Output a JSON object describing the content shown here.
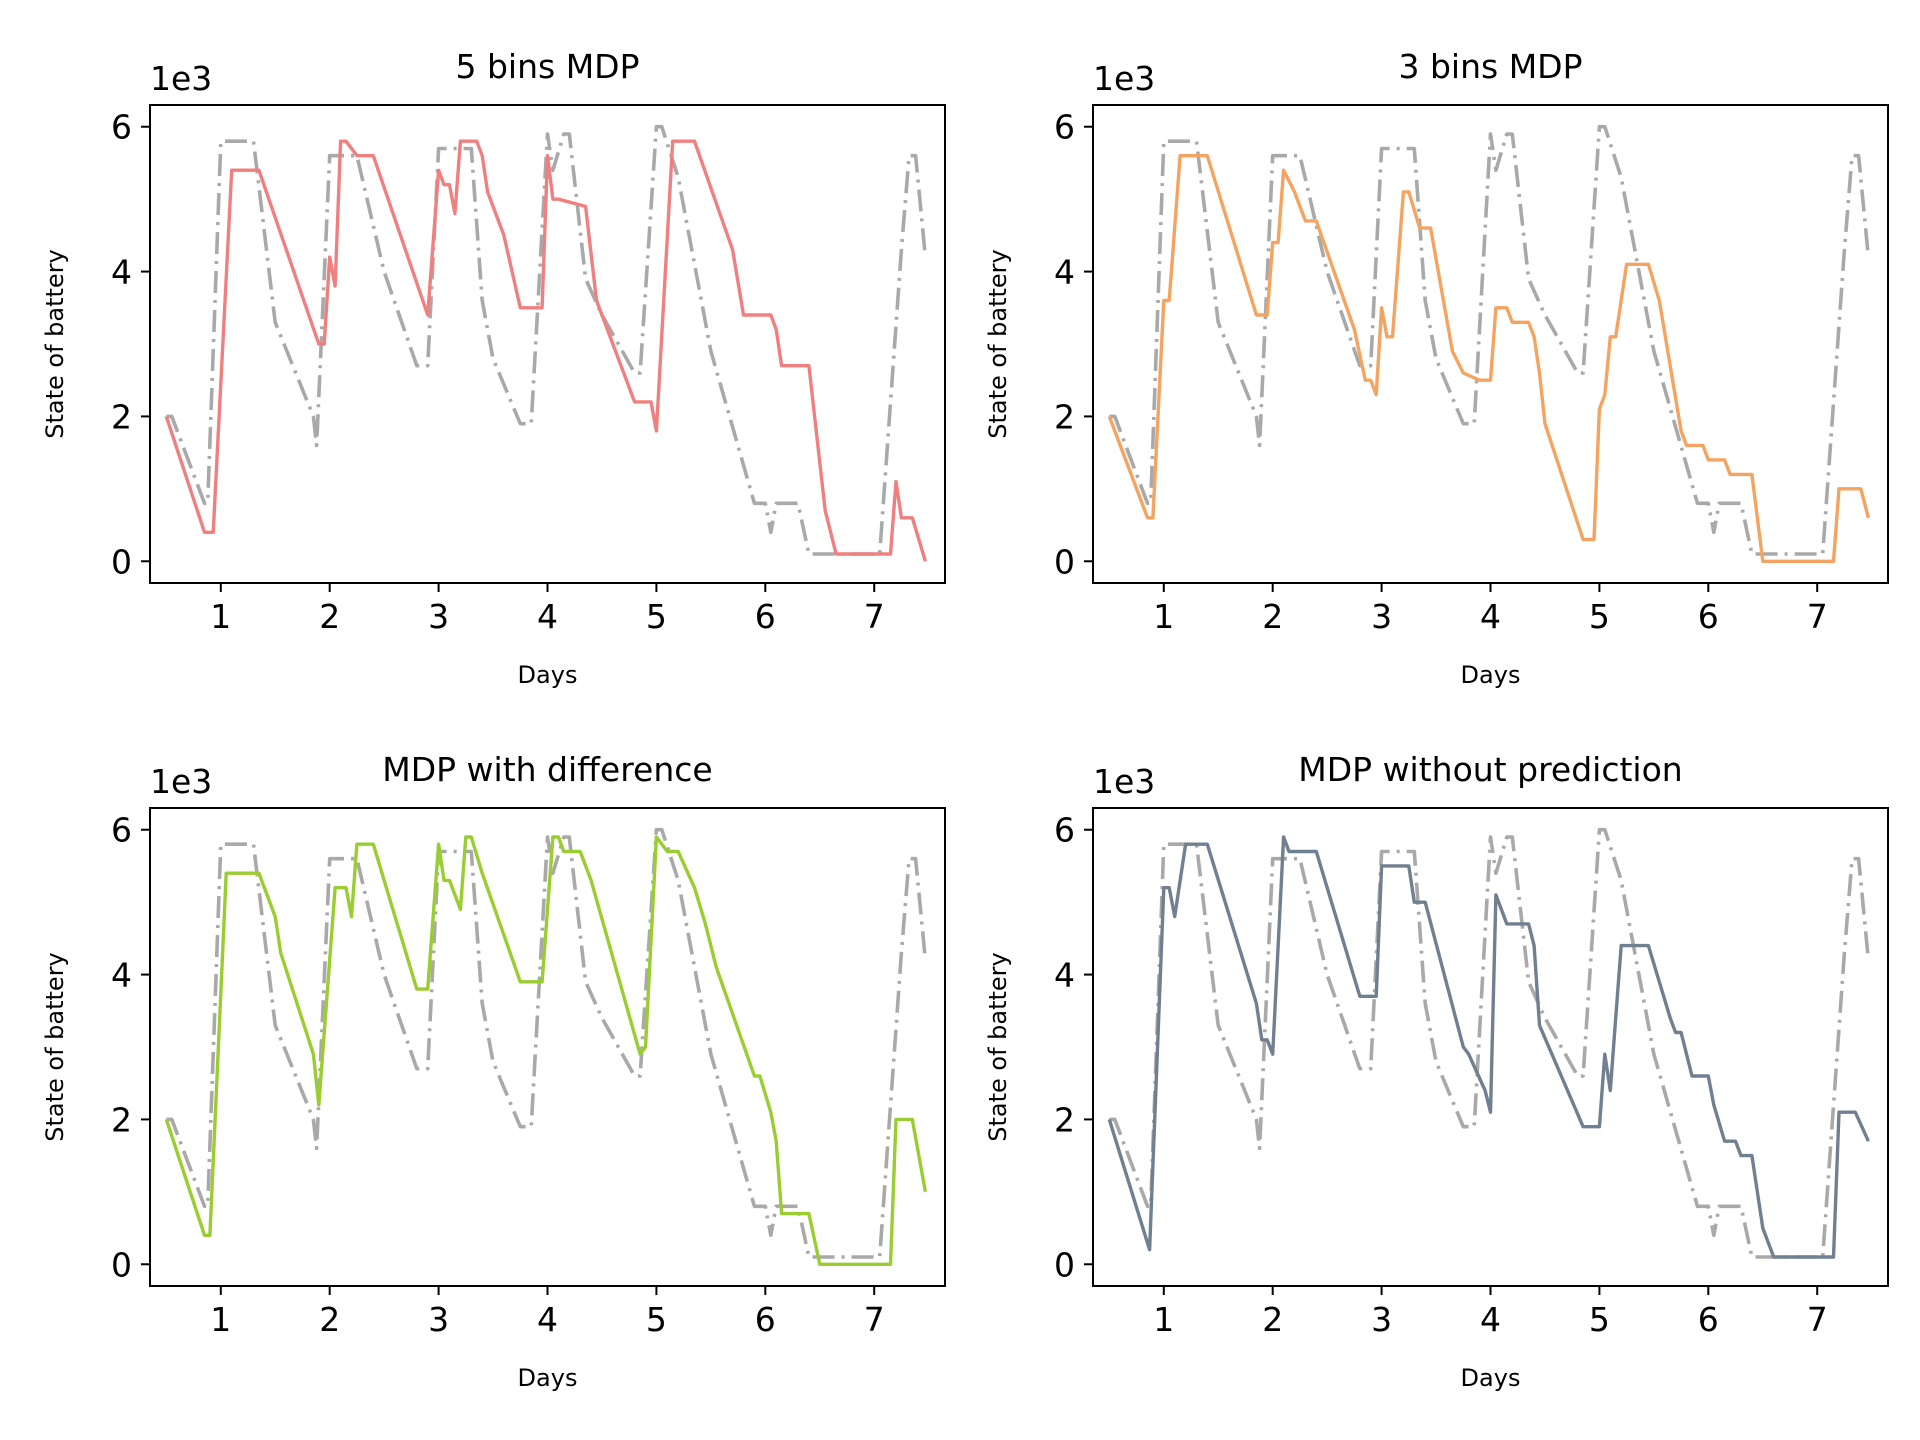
{
  "figure": {
    "colors": {
      "reference": "#a9a9a9",
      "panel_1": "#f08080",
      "panel_2": "#f4a460",
      "panel_3": "#9acd32",
      "panel_4": "#708090"
    }
  },
  "chart_data": [
    {
      "type": "line",
      "title": "5 bins MDP",
      "xlabel": "Days",
      "ylabel": "State of battery",
      "y_offset_label": "1e3",
      "xlim": [
        0.35,
        7.65
      ],
      "ylim": [
        -0.3,
        6.3
      ],
      "xticks": [
        1,
        2,
        3,
        4,
        5,
        6,
        7
      ],
      "yticks": [
        0,
        2,
        4,
        6
      ],
      "grid": false,
      "series": [
        {
          "style": "dashdot",
          "color": "#a9a9a9",
          "x": [
            0.5,
            0.55,
            0.85,
            0.88,
            1.0,
            1.05,
            1.3,
            1.5,
            1.85,
            1.88,
            2.0,
            2.05,
            2.25,
            2.5,
            2.8,
            2.9,
            3.0,
            3.3,
            3.4,
            3.5,
            3.75,
            3.85,
            4.0,
            4.05,
            4.15,
            4.2,
            4.35,
            4.5,
            4.8,
            4.85,
            5.0,
            5.05,
            5.2,
            5.5,
            5.9,
            6.0,
            6.05,
            6.1,
            6.3,
            6.4,
            6.85,
            7.05,
            7.25,
            7.32,
            7.38,
            7.47
          ],
          "y": [
            2.0,
            2.0,
            0.8,
            0.8,
            5.8,
            5.8,
            5.8,
            3.3,
            2.0,
            1.6,
            5.6,
            5.6,
            5.6,
            4.0,
            2.7,
            2.7,
            5.7,
            5.7,
            3.6,
            2.8,
            1.9,
            1.9,
            5.9,
            5.4,
            5.9,
            5.9,
            3.9,
            3.4,
            2.6,
            2.6,
            6.0,
            6.0,
            5.3,
            2.9,
            0.8,
            0.8,
            0.4,
            0.8,
            0.8,
            0.1,
            0.1,
            0.1,
            4.3,
            5.6,
            5.6,
            4.2
          ]
        },
        {
          "style": "solid",
          "color": "#f08080",
          "x": [
            0.5,
            0.85,
            0.93,
            1.1,
            1.35,
            1.9,
            1.95,
            2.0,
            2.05,
            2.1,
            2.15,
            2.25,
            2.4,
            2.9,
            3.0,
            3.05,
            3.1,
            3.15,
            3.2,
            3.35,
            3.4,
            3.45,
            3.6,
            3.75,
            3.9,
            3.95,
            4.0,
            4.05,
            4.1,
            4.35,
            4.45,
            4.8,
            4.95,
            5.0,
            5.15,
            5.35,
            5.7,
            5.8,
            6.05,
            6.1,
            6.15,
            6.4,
            6.55,
            6.65,
            6.75,
            7.15,
            7.2,
            7.25,
            7.35,
            7.47
          ],
          "y": [
            2.0,
            0.4,
            0.4,
            5.4,
            5.4,
            3.0,
            3.0,
            4.2,
            3.8,
            5.8,
            5.8,
            5.6,
            5.6,
            3.4,
            5.4,
            5.2,
            5.2,
            4.8,
            5.8,
            5.8,
            5.6,
            5.1,
            4.5,
            3.5,
            3.5,
            3.5,
            5.6,
            5.0,
            5.0,
            4.9,
            3.6,
            2.2,
            2.2,
            1.8,
            5.8,
            5.8,
            4.3,
            3.4,
            3.4,
            3.2,
            2.7,
            2.7,
            0.7,
            0.1,
            0.1,
            0.1,
            1.1,
            0.6,
            0.6,
            0.0
          ]
        }
      ]
    },
    {
      "type": "line",
      "title": "3 bins MDP",
      "xlabel": "Days",
      "ylabel": "State of battery",
      "y_offset_label": "1e3",
      "xlim": [
        0.35,
        7.65
      ],
      "ylim": [
        -0.3,
        6.3
      ],
      "xticks": [
        1,
        2,
        3,
        4,
        5,
        6,
        7
      ],
      "yticks": [
        0,
        2,
        4,
        6
      ],
      "grid": false,
      "series": [
        {
          "style": "dashdot",
          "color": "#a9a9a9",
          "x": [
            0.5,
            0.55,
            0.85,
            0.88,
            1.0,
            1.05,
            1.3,
            1.5,
            1.85,
            1.88,
            2.0,
            2.05,
            2.25,
            2.5,
            2.8,
            2.9,
            3.0,
            3.3,
            3.4,
            3.5,
            3.75,
            3.85,
            4.0,
            4.05,
            4.15,
            4.2,
            4.35,
            4.5,
            4.8,
            4.85,
            5.0,
            5.05,
            5.2,
            5.5,
            5.9,
            6.0,
            6.05,
            6.1,
            6.3,
            6.4,
            6.85,
            7.05,
            7.25,
            7.32,
            7.38,
            7.47
          ],
          "y": [
            2.0,
            2.0,
            0.8,
            0.8,
            5.8,
            5.8,
            5.8,
            3.3,
            2.0,
            1.6,
            5.6,
            5.6,
            5.6,
            4.0,
            2.7,
            2.7,
            5.7,
            5.7,
            3.6,
            2.8,
            1.9,
            1.9,
            5.9,
            5.4,
            5.9,
            5.9,
            3.9,
            3.4,
            2.6,
            2.6,
            6.0,
            6.0,
            5.3,
            2.9,
            0.8,
            0.8,
            0.4,
            0.8,
            0.8,
            0.1,
            0.1,
            0.1,
            4.3,
            5.6,
            5.6,
            4.2
          ]
        },
        {
          "style": "solid",
          "color": "#f4a460",
          "x": [
            0.5,
            0.85,
            0.9,
            1.0,
            1.05,
            1.15,
            1.4,
            1.85,
            1.95,
            2.0,
            2.05,
            2.1,
            2.2,
            2.3,
            2.4,
            2.75,
            2.85,
            2.9,
            2.95,
            3.0,
            3.05,
            3.1,
            3.2,
            3.25,
            3.35,
            3.45,
            3.65,
            3.75,
            3.9,
            4.0,
            4.05,
            4.15,
            4.2,
            4.35,
            4.4,
            4.45,
            4.5,
            4.85,
            4.95,
            5.0,
            5.05,
            5.1,
            5.15,
            5.25,
            5.45,
            5.55,
            5.75,
            5.8,
            5.95,
            6.0,
            6.15,
            6.2,
            6.4,
            6.5,
            6.75,
            7.15,
            7.2,
            7.3,
            7.4,
            7.47
          ],
          "y": [
            2.0,
            0.6,
            0.6,
            3.6,
            3.6,
            5.6,
            5.6,
            3.4,
            3.4,
            4.4,
            4.4,
            5.4,
            5.1,
            4.7,
            4.7,
            3.2,
            2.5,
            2.5,
            2.3,
            3.5,
            3.1,
            3.1,
            5.1,
            5.1,
            4.6,
            4.6,
            2.9,
            2.6,
            2.5,
            2.5,
            3.5,
            3.5,
            3.3,
            3.3,
            3.1,
            2.6,
            1.9,
            0.3,
            0.3,
            2.1,
            2.3,
            3.1,
            3.1,
            4.1,
            4.1,
            3.6,
            1.8,
            1.6,
            1.6,
            1.4,
            1.4,
            1.2,
            1.2,
            0.0,
            0.0,
            0.0,
            1.0,
            1.0,
            1.0,
            0.6
          ]
        }
      ]
    },
    {
      "type": "line",
      "title": "MDP with difference",
      "xlabel": "Days",
      "ylabel": "State of battery",
      "y_offset_label": "1e3",
      "xlim": [
        0.35,
        7.65
      ],
      "ylim": [
        -0.3,
        6.3
      ],
      "xticks": [
        1,
        2,
        3,
        4,
        5,
        6,
        7
      ],
      "yticks": [
        0,
        2,
        4,
        6
      ],
      "grid": false,
      "series": [
        {
          "style": "dashdot",
          "color": "#a9a9a9",
          "x": [
            0.5,
            0.55,
            0.85,
            0.88,
            1.0,
            1.05,
            1.3,
            1.5,
            1.85,
            1.88,
            2.0,
            2.05,
            2.25,
            2.5,
            2.8,
            2.9,
            3.0,
            3.3,
            3.4,
            3.5,
            3.75,
            3.85,
            4.0,
            4.05,
            4.15,
            4.2,
            4.35,
            4.5,
            4.8,
            4.85,
            5.0,
            5.05,
            5.2,
            5.5,
            5.9,
            6.0,
            6.05,
            6.1,
            6.3,
            6.4,
            6.85,
            7.05,
            7.25,
            7.32,
            7.38,
            7.47
          ],
          "y": [
            2.0,
            2.0,
            0.8,
            0.8,
            5.8,
            5.8,
            5.8,
            3.3,
            2.0,
            1.6,
            5.6,
            5.6,
            5.6,
            4.0,
            2.7,
            2.7,
            5.7,
            5.7,
            3.6,
            2.8,
            1.9,
            1.9,
            5.9,
            5.4,
            5.9,
            5.9,
            3.9,
            3.4,
            2.6,
            2.6,
            6.0,
            6.0,
            5.3,
            2.9,
            0.8,
            0.8,
            0.4,
            0.8,
            0.8,
            0.1,
            0.1,
            0.1,
            4.3,
            5.6,
            5.6,
            4.2
          ]
        },
        {
          "style": "solid",
          "color": "#9acd32",
          "x": [
            0.5,
            0.85,
            0.9,
            1.05,
            1.35,
            1.5,
            1.55,
            1.85,
            1.9,
            2.05,
            2.15,
            2.2,
            2.25,
            2.4,
            2.8,
            2.9,
            3.0,
            3.05,
            3.1,
            3.2,
            3.25,
            3.3,
            3.4,
            3.75,
            3.95,
            4.05,
            4.1,
            4.15,
            4.3,
            4.4,
            4.85,
            4.9,
            5.0,
            5.1,
            5.2,
            5.35,
            5.45,
            5.55,
            5.9,
            5.95,
            6.05,
            6.1,
            6.15,
            6.4,
            6.5,
            6.6,
            7.15,
            7.2,
            7.35,
            7.47
          ],
          "y": [
            2.0,
            0.4,
            0.4,
            5.4,
            5.4,
            4.8,
            4.3,
            2.9,
            2.2,
            5.2,
            5.2,
            4.8,
            5.8,
            5.8,
            3.8,
            3.8,
            5.8,
            5.3,
            5.3,
            4.9,
            5.9,
            5.9,
            5.4,
            3.9,
            3.9,
            5.9,
            5.9,
            5.7,
            5.7,
            5.3,
            2.9,
            3.0,
            5.9,
            5.7,
            5.7,
            5.2,
            4.7,
            4.1,
            2.6,
            2.6,
            2.1,
            1.7,
            0.7,
            0.7,
            0.0,
            0.0,
            0.0,
            2.0,
            2.0,
            1.0
          ]
        }
      ]
    },
    {
      "type": "line",
      "title": "MDP without prediction",
      "xlabel": "Days",
      "ylabel": "State of battery",
      "y_offset_label": "1e3",
      "xlim": [
        0.35,
        7.65
      ],
      "ylim": [
        -0.3,
        6.3
      ],
      "xticks": [
        1,
        2,
        3,
        4,
        5,
        6,
        7
      ],
      "yticks": [
        0,
        2,
        4,
        6
      ],
      "grid": false,
      "series": [
        {
          "style": "dashdot",
          "color": "#a9a9a9",
          "x": [
            0.5,
            0.55,
            0.85,
            0.88,
            1.0,
            1.05,
            1.3,
            1.5,
            1.85,
            1.88,
            2.0,
            2.05,
            2.25,
            2.5,
            2.8,
            2.9,
            3.0,
            3.3,
            3.4,
            3.5,
            3.75,
            3.85,
            4.0,
            4.05,
            4.15,
            4.2,
            4.35,
            4.5,
            4.8,
            4.85,
            5.0,
            5.05,
            5.2,
            5.5,
            5.9,
            6.0,
            6.05,
            6.1,
            6.3,
            6.4,
            6.85,
            7.05,
            7.25,
            7.32,
            7.38,
            7.47
          ],
          "y": [
            2.0,
            2.0,
            0.8,
            0.8,
            5.8,
            5.8,
            5.8,
            3.3,
            2.0,
            1.6,
            5.6,
            5.6,
            5.6,
            4.0,
            2.7,
            2.7,
            5.7,
            5.7,
            3.6,
            2.8,
            1.9,
            1.9,
            5.9,
            5.4,
            5.9,
            5.9,
            3.9,
            3.4,
            2.6,
            2.6,
            6.0,
            6.0,
            5.3,
            2.9,
            0.8,
            0.8,
            0.4,
            0.8,
            0.8,
            0.1,
            0.1,
            0.1,
            4.3,
            5.6,
            5.6,
            4.2
          ]
        },
        {
          "style": "solid",
          "color": "#708090",
          "x": [
            0.5,
            0.87,
            1.0,
            1.05,
            1.1,
            1.2,
            1.4,
            1.85,
            1.9,
            1.95,
            2.0,
            2.1,
            2.15,
            2.2,
            2.4,
            2.8,
            2.9,
            2.95,
            3.0,
            3.05,
            3.25,
            3.3,
            3.4,
            3.75,
            3.8,
            3.95,
            4.0,
            4.05,
            4.15,
            4.35,
            4.4,
            4.45,
            4.85,
            4.95,
            5.0,
            5.05,
            5.1,
            5.15,
            5.2,
            5.45,
            5.65,
            5.7,
            5.75,
            5.85,
            6.0,
            6.05,
            6.15,
            6.25,
            6.3,
            6.4,
            6.5,
            6.6,
            7.15,
            7.2,
            7.35,
            7.47
          ],
          "y": [
            2.0,
            0.2,
            5.2,
            5.2,
            4.8,
            5.8,
            5.8,
            3.6,
            3.1,
            3.1,
            2.9,
            5.9,
            5.7,
            5.7,
            5.7,
            3.7,
            3.7,
            3.7,
            5.5,
            5.5,
            5.5,
            5.0,
            5.0,
            3.0,
            2.9,
            2.4,
            2.1,
            5.1,
            4.7,
            4.7,
            4.4,
            3.3,
            1.9,
            1.9,
            1.9,
            2.9,
            2.4,
            3.4,
            4.4,
            4.4,
            3.4,
            3.2,
            3.2,
            2.6,
            2.6,
            2.2,
            1.7,
            1.7,
            1.5,
            1.5,
            0.5,
            0.1,
            0.1,
            2.1,
            2.1,
            1.7
          ]
        }
      ]
    }
  ]
}
